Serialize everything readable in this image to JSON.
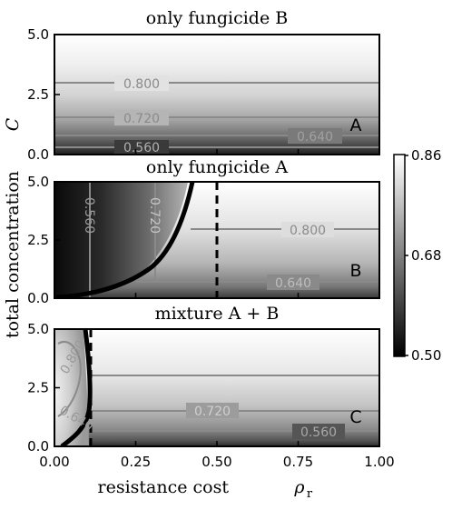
{
  "chart_data": {
    "type": "heatmap",
    "xlabel": "resistance cost",
    "xlabel_symbol": "ρ",
    "xlabel_sub": "r",
    "ylabel": "total concentration",
    "ylabel_symbol": "C",
    "xlim": [
      0.0,
      1.0
    ],
    "ylim": [
      0.0,
      5.0
    ],
    "xticks": [
      "0.00",
      "0.25",
      "0.50",
      "0.75",
      "1.00"
    ],
    "yticks": [
      "0.0",
      "2.5",
      "5.0"
    ],
    "colorbar": {
      "min": 0.5,
      "max": 0.86,
      "ticks": [
        "0.86",
        "0.68",
        "0.50"
      ],
      "colormap": "gray"
    },
    "panels": [
      {
        "title": "only fungicide B",
        "letter": "A",
        "contours": [
          {
            "label": "0.800",
            "label_x": 0.27,
            "label_y": 3.0
          },
          {
            "label": "0.720",
            "label_x": 0.27,
            "label_y": 1.6
          },
          {
            "label": "0.640",
            "label_x": 0.8,
            "label_y": 0.85
          },
          {
            "label": "0.560",
            "label_x": 0.27,
            "label_y": 0.3
          }
        ]
      },
      {
        "title": "only fungicide A",
        "letter": "B",
        "contours": [
          {
            "label": "0.560",
            "label_x": 0.1,
            "label_y": 3.7
          },
          {
            "label": "0.720",
            "label_x": 0.31,
            "label_y": 3.7
          },
          {
            "label": "0.800",
            "label_x": 0.77,
            "label_y": 3.0
          },
          {
            "label": "0.640",
            "label_x": 0.73,
            "label_y": 0.7
          }
        ],
        "boundary_dashed_x": 0.5
      },
      {
        "title": "mixture A + B",
        "letter": "C",
        "contours": [
          {
            "label": "0.800",
            "label_x": 0.07,
            "label_y": 4.2
          },
          {
            "label": "0.640",
            "label_x": 0.07,
            "label_y": 1.2
          },
          {
            "label": "0.720",
            "label_x": 0.49,
            "label_y": 1.5
          },
          {
            "label": "0.560",
            "label_x": 0.81,
            "label_y": 0.45
          }
        ],
        "boundary_dashed_x": 0.11
      }
    ]
  }
}
